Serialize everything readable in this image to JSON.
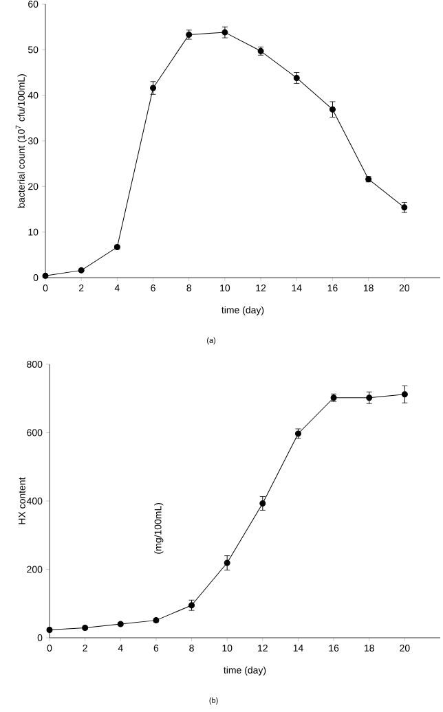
{
  "chart_data": [
    {
      "type": "line",
      "xlabel": "time (day)",
      "ylabel": "bacterial count (10$^{7}$ cfu/100mL)",
      "annotations": [
        "(a)"
      ],
      "x": [
        0,
        2,
        4,
        6,
        8,
        10,
        12,
        14,
        16,
        18,
        20
      ],
      "series": [
        {
          "color": "#000000",
          "values": [
            0.4,
            1.6,
            6.7,
            41.6,
            53.3,
            53.8,
            49.7,
            43.8,
            36.9,
            21.6,
            15.4
          ],
          "errors": [
            0.3,
            0.3,
            0.4,
            1.4,
            1.0,
            1.2,
            0.9,
            1.2,
            1.7,
            0.6,
            1.1
          ]
        }
      ],
      "xlim": [
        0,
        22
      ],
      "ylim": [
        0,
        60
      ],
      "xticks": [
        0,
        2,
        4,
        6,
        8,
        10,
        12,
        14,
        16,
        18,
        20
      ],
      "yticks": [
        0,
        10,
        20,
        30,
        40,
        50,
        60
      ],
      "marker": "circle",
      "line_style": "solid",
      "grid": false
    },
    {
      "type": "line",
      "xlabel": "time (day)",
      "ylabel": "HX content",
      "annotations": [
        "(mg/100mL)",
        "(b)"
      ],
      "x": [
        0,
        2,
        4,
        6,
        8,
        10,
        12,
        14,
        16,
        18,
        20
      ],
      "series": [
        {
          "color": "#000000",
          "values": [
            23,
            29,
            40,
            51,
            95,
            219,
            393,
            597,
            702,
            702,
            712
          ],
          "errors": [
            5,
            5,
            5,
            5,
            15,
            21,
            20,
            14,
            11,
            17,
            25
          ]
        }
      ],
      "xlim": [
        0,
        22
      ],
      "ylim": [
        0,
        800
      ],
      "xticks": [
        0,
        2,
        4,
        6,
        8,
        10,
        12,
        14,
        16,
        18,
        20
      ],
      "yticks": [
        0,
        200,
        400,
        600,
        800
      ],
      "marker": "circle",
      "line_style": "solid",
      "grid": false
    }
  ]
}
